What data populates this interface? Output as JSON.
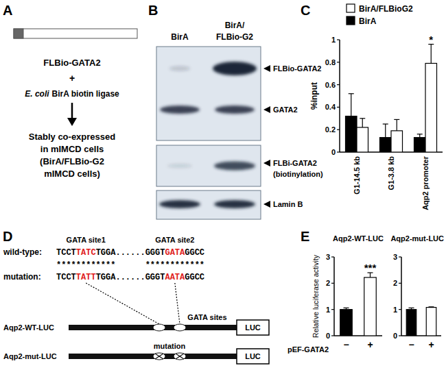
{
  "panel_labels": [
    "A",
    "B",
    "C",
    "D",
    "E"
  ],
  "panel_a": {
    "construct": "FLBio-GATA2",
    "plus": "+",
    "ligase_species": "E. coli",
    "ligase": "BirA biotin ligase",
    "result": [
      "Stably co-expressed",
      "in mIMCD cells",
      "(BirA/FLBio-G2",
      "mIMCD cells)"
    ]
  },
  "panel_b": {
    "lanes": [
      [
        "BirA"
      ],
      [
        "BirA/",
        "FLBio-G2"
      ]
    ],
    "bands": [
      [
        "FLBio-GATA2"
      ],
      [
        "GATA2"
      ],
      [
        "FLBi-GATA2",
        "(biotinylation)"
      ],
      [
        "Lamin B"
      ]
    ]
  },
  "panel_d": {
    "site_labels": [
      "GATA site1",
      "GATA site2"
    ],
    "rows": [
      {
        "label": "wild-type:",
        "parts": [
          "TCCT",
          "TATC",
          "TGGA......GGGT",
          "GATA",
          "GGCC"
        ]
      },
      {
        "label": "mutation:",
        "parts": [
          "TCCT",
          "TATT",
          "TGGA......GGGT",
          "AATA",
          "GGCC"
        ]
      }
    ],
    "match": [
      "************",
      "************"
    ],
    "constructs": [
      {
        "label": "Aqp2-WT-LUC",
        "note": "GATA sites",
        "reporter": "LUC"
      },
      {
        "label": "Aqp2-mut-LUC",
        "note": "mutation",
        "reporter": "LUC"
      }
    ]
  },
  "chart_data": [
    {
      "type": "bar",
      "y_label": "%input",
      "categories": [
        "G1-14.5 kb",
        "G1-3.8 kb",
        "Aqp2 promoter"
      ],
      "series": [
        {
          "name": "BirA",
          "color": "#000000",
          "values": [
            0.32,
            0.13,
            0.13
          ],
          "errors": [
            0.2,
            0.12,
            0.03
          ]
        },
        {
          "name": "BirA/FLBioG2",
          "color": "#ffffff",
          "values": [
            0.22,
            0.19,
            0.79
          ],
          "errors": [
            0.08,
            0.1,
            0.17
          ]
        }
      ],
      "ylim": [
        0,
        1
      ],
      "yticks": [
        0,
        0.2,
        0.4,
        0.6,
        0.8,
        1
      ],
      "legend": "top",
      "annotations": [
        {
          "text": "*",
          "category": "Aqp2 promoter",
          "series": "BirA/FLBioG2"
        }
      ]
    },
    {
      "type": "bar",
      "title": "Aqp2-WT-LUC",
      "y_label": "Relative luciferase activity",
      "x_label": "pEF-GATA2",
      "categories": [
        "−",
        "+"
      ],
      "values": [
        1.0,
        2.22
      ],
      "errors": [
        0.06,
        0.18
      ],
      "colors": [
        "#000000",
        "#ffffff"
      ],
      "ylim": [
        0,
        3
      ],
      "yticks": [
        0,
        1,
        2,
        3
      ],
      "annotations": [
        {
          "text": "***",
          "category": "+"
        }
      ]
    },
    {
      "type": "bar",
      "title": "Aqp2-mut-LUC",
      "categories": [
        "−",
        "+"
      ],
      "values": [
        1.0,
        1.08
      ],
      "errors": [
        0.06,
        0.02
      ],
      "colors": [
        "#000000",
        "#ffffff"
      ],
      "ylim": [
        0,
        3
      ],
      "yticks": [
        0,
        1,
        2,
        3
      ]
    }
  ]
}
